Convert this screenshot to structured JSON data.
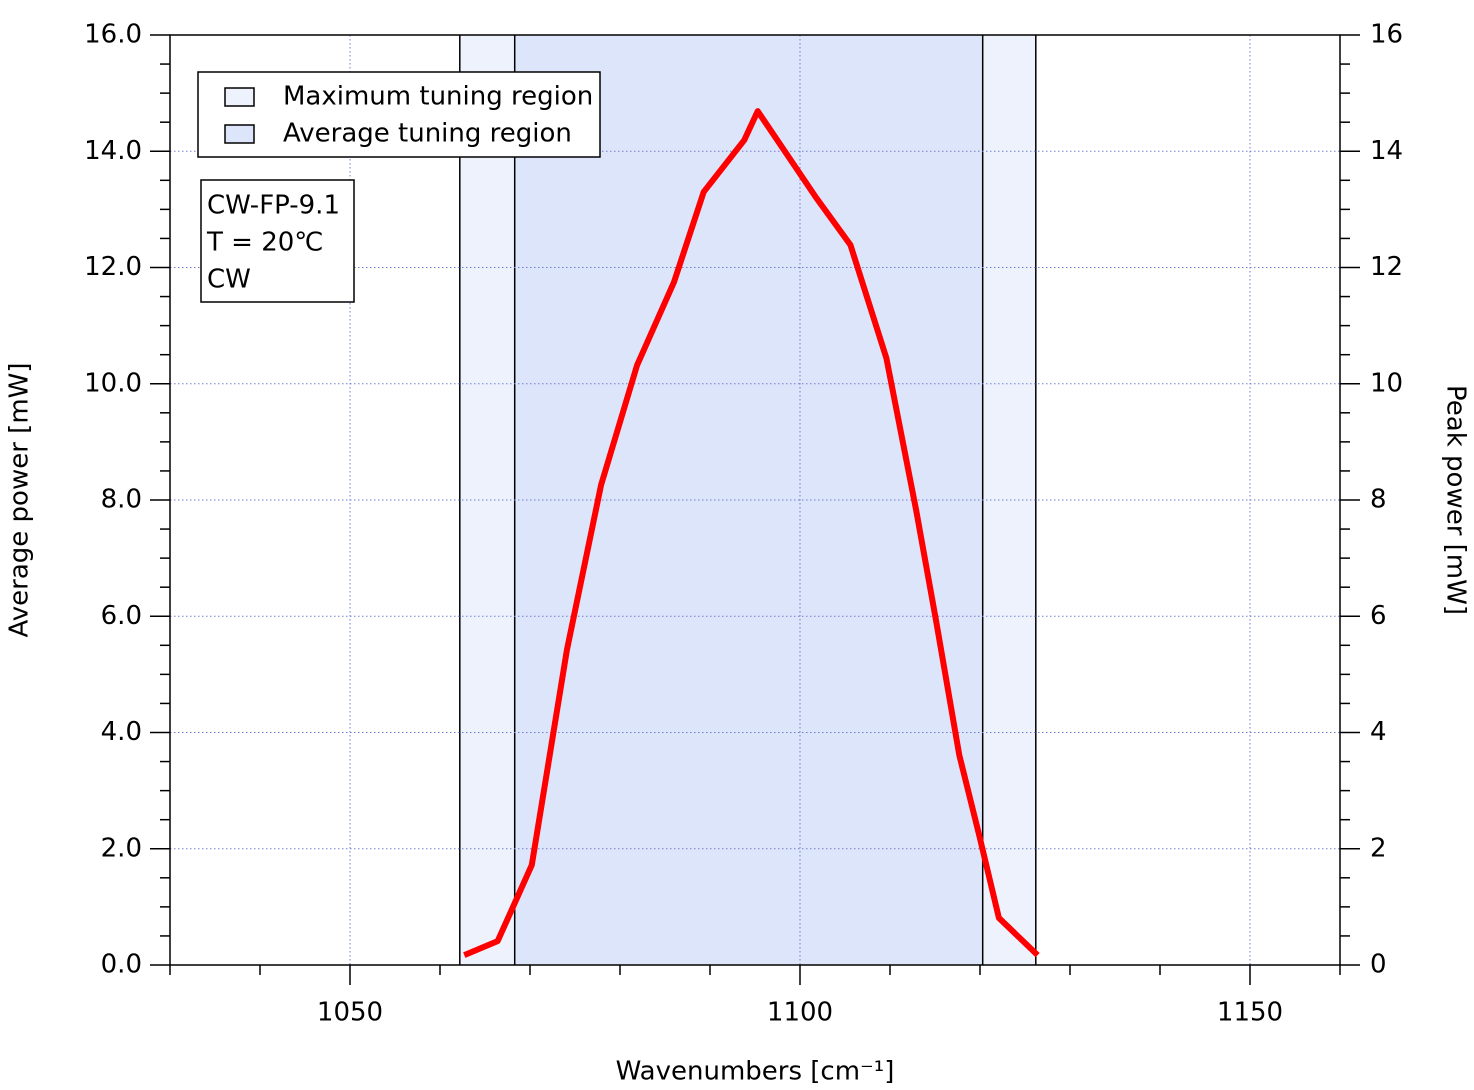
{
  "chart_data": {
    "type": "line",
    "xlabel": "Wavenumbers [cm⁻¹]",
    "ylabel": "Average power [mW]",
    "y2label": "Peak power [mW]",
    "xlim": [
      1030,
      1160
    ],
    "xticks": [
      1050,
      1100,
      1150
    ],
    "ylim": [
      0,
      16
    ],
    "yticks": [
      {
        "value": 0,
        "label": "0.0"
      },
      {
        "value": 2,
        "label": "2.0"
      },
      {
        "value": 4,
        "label": "4.0"
      },
      {
        "value": 6,
        "label": "6.0"
      },
      {
        "value": 8,
        "label": "8.0"
      },
      {
        "value": 10,
        "label": "10.0"
      },
      {
        "value": 12,
        "label": "12.0"
      },
      {
        "value": 14,
        "label": "14.0"
      },
      {
        "value": 16,
        "label": "16.0"
      }
    ],
    "y2lim": [
      0,
      16
    ],
    "y2ticks": [
      0,
      2,
      4,
      6,
      8,
      10,
      12,
      14,
      16
    ],
    "grid": true,
    "legend": "upper left",
    "regions": [
      {
        "name": "Maximum tuning region",
        "color": "#eef2fd",
        "range": [
          1062.2,
          1126.2
        ]
      },
      {
        "name": "Average tuning region",
        "color": "#dde5fa",
        "range": [
          1068.3,
          1120.3
        ]
      }
    ],
    "annotation": [
      "CW-FP-9.1",
      "T = 20℃",
      "CW"
    ],
    "x": [
      1062.7,
      1066.4,
      1070.2,
      1074.1,
      1077.9,
      1081.9,
      1086.0,
      1089.3,
      1093.8,
      1095.3,
      1101.8,
      1105.6,
      1109.6,
      1112.9,
      1115.1,
      1117.7,
      1119.9,
      1122.1,
      1126.4
    ],
    "series": [
      {
        "color": "#ff0000",
        "values": [
          0.17,
          0.41,
          1.72,
          5.42,
          8.26,
          10.32,
          11.75,
          13.3,
          14.19,
          14.69,
          13.2,
          12.39,
          10.44,
          7.83,
          5.94,
          3.61,
          2.24,
          0.81,
          0.17
        ]
      }
    ]
  }
}
